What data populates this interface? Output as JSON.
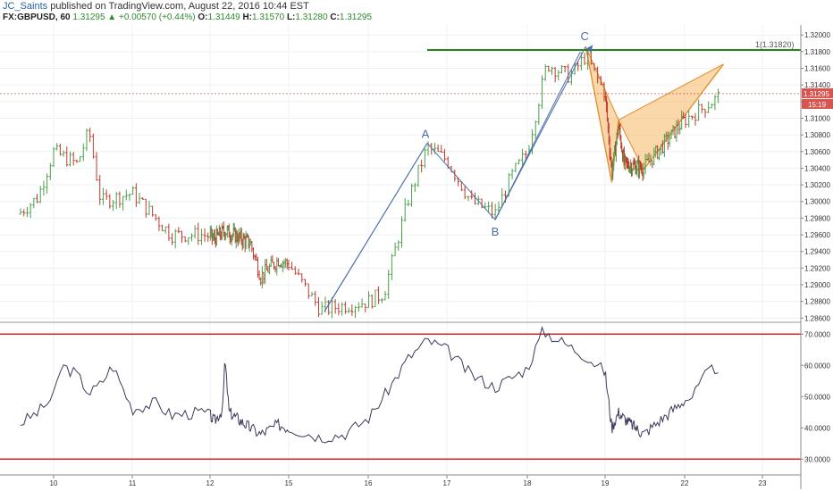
{
  "header": {
    "author": "JC_Saints",
    "published": "published on TradingView.com, August 22, 2016 10:44 EST",
    "symbol": "FX:GBPUSD, 60",
    "last": "1.31295",
    "change": "+0.00570 (+0.44%)",
    "o_label": "O:",
    "o": "1.31449",
    "h_label": "H:",
    "h": "1.31570",
    "l_label": "L:",
    "l": "1.31280",
    "c_label": "C:",
    "c": "1.31295"
  },
  "price_axis": {
    "ticks": [
      "1.32000",
      "1.31800",
      "1.31600",
      "1.31400",
      "1.31200",
      "1.31000",
      "1.30800",
      "1.30600",
      "1.30400",
      "1.30200",
      "1.30000",
      "1.29800",
      "1.29600",
      "1.29400",
      "1.29200",
      "1.29000",
      "1.28800",
      "1.28600"
    ],
    "last_price_label": "1.31295",
    "countdown_label": "15:19",
    "fib_label": "1(1.31820)"
  },
  "rsi_axis": {
    "ticks": [
      "70.0000",
      "60.0000",
      "50.0000",
      "40.0000",
      "30.0000"
    ]
  },
  "time_axis": {
    "ticks": [
      "10",
      "11",
      "12",
      "15",
      "16",
      "17",
      "18",
      "19",
      "22",
      "23"
    ]
  },
  "wave_labels": {
    "a": "A",
    "b": "B",
    "c": "C"
  },
  "colors": {
    "up": "#4a9e4a",
    "down": "#c0392b",
    "rsi_line": "#3a3a5a",
    "rsi_band": "#e02020",
    "fib_line": "#2e7d1f",
    "pattern_fill": "#f5b865",
    "pattern_stroke": "#e08a2a",
    "arrow": "#4a6fa5",
    "last_price_bg": "#d9534f"
  },
  "chart_data": [
    {
      "type": "candlestick",
      "series": [
        {
          "name": "FX:GBPUSD, 60"
        }
      ],
      "ylim": [
        1.2856,
        1.3212
      ],
      "x_range": [
        9.55,
        23.15
      ],
      "fib_level": 1.3182,
      "last_price": 1.31295,
      "wave_points": {
        "A": [
          16.75,
          1.307
        ],
        "B": [
          17.6,
          1.2978
        ],
        "C": [
          18.75,
          1.3186
        ]
      },
      "harmonic_pattern": [
        [
          18.75,
          1.3186
        ],
        [
          19.35,
          1.3023
        ],
        [
          19.7,
          1.3098
        ],
        [
          20.0,
          1.304
        ],
        [
          21.0,
          1.3038
        ],
        [
          22.5,
          1.3165
        ]
      ],
      "anchors": [
        [
          9.55,
          1.2985
        ],
        [
          9.8,
          1.3005
        ],
        [
          10.0,
          1.306
        ],
        [
          10.3,
          1.3045
        ],
        [
          10.45,
          1.3085
        ],
        [
          10.6,
          1.3
        ],
        [
          11.0,
          1.301
        ],
        [
          11.2,
          1.299
        ],
        [
          11.5,
          1.296
        ],
        [
          11.9,
          1.296
        ],
        [
          12.2,
          1.2955
        ],
        [
          12.7,
          1.2965
        ],
        [
          13.9,
          1.295
        ],
        [
          14.2,
          1.291
        ],
        [
          14.7,
          1.293
        ],
        [
          15.0,
          1.2925
        ],
        [
          15.4,
          1.287
        ],
        [
          15.7,
          1.2875
        ],
        [
          16.0,
          1.288
        ],
        [
          16.2,
          1.289
        ],
        [
          16.5,
          1.3
        ],
        [
          16.75,
          1.3065
        ],
        [
          17.0,
          1.305
        ],
        [
          17.3,
          1.3
        ],
        [
          17.6,
          1.2985
        ],
        [
          17.8,
          1.303
        ],
        [
          18.0,
          1.306
        ],
        [
          18.25,
          1.3165
        ],
        [
          18.55,
          1.315
        ],
        [
          18.75,
          1.3175
        ],
        [
          19.0,
          1.313
        ],
        [
          19.35,
          1.3035
        ],
        [
          19.7,
          1.309
        ],
        [
          20.0,
          1.3045
        ],
        [
          21.0,
          1.304
        ],
        [
          22.2,
          1.311
        ],
        [
          22.5,
          1.313
        ]
      ]
    },
    {
      "type": "line",
      "series": [
        {
          "name": ""
        }
      ],
      "ylim": [
        25.5,
        73.5
      ],
      "bands": [
        70,
        30
      ],
      "points": [
        [
          9.55,
          41
        ],
        [
          9.8,
          45
        ],
        [
          10.0,
          50
        ],
        [
          10.1,
          60
        ],
        [
          10.3,
          57
        ],
        [
          10.45,
          51
        ],
        [
          10.6,
          54
        ],
        [
          10.75,
          60
        ],
        [
          11.0,
          46
        ],
        [
          11.3,
          48
        ],
        [
          11.5,
          44
        ],
        [
          11.9,
          45
        ],
        [
          12.2,
          42
        ],
        [
          12.6,
          46
        ],
        [
          12.7,
          62
        ],
        [
          12.9,
          45
        ],
        [
          13.9,
          40
        ],
        [
          14.2,
          38
        ],
        [
          14.7,
          41
        ],
        [
          15.0,
          40
        ],
        [
          15.4,
          37
        ],
        [
          15.7,
          38
        ],
        [
          16.0,
          43
        ],
        [
          16.2,
          50
        ],
        [
          16.5,
          62
        ],
        [
          16.75,
          68
        ],
        [
          17.0,
          65
        ],
        [
          17.3,
          57
        ],
        [
          17.6,
          53
        ],
        [
          17.8,
          56
        ],
        [
          18.0,
          59
        ],
        [
          18.2,
          71
        ],
        [
          18.55,
          66
        ],
        [
          18.75,
          63
        ],
        [
          19.0,
          58
        ],
        [
          19.35,
          40
        ],
        [
          19.7,
          45
        ],
        [
          20.0,
          43
        ],
        [
          21.0,
          38
        ],
        [
          22.1,
          50
        ],
        [
          22.3,
          58
        ],
        [
          22.5,
          60
        ]
      ]
    }
  ]
}
